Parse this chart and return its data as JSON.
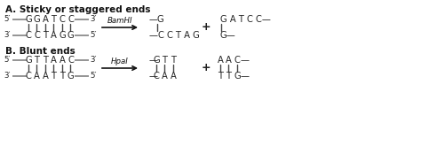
{
  "title_A": "A. Sticky or staggered ends",
  "title_B": "B. Blunt ends",
  "enzyme_A": "BamHI",
  "enzyme_B": "HpaI",
  "bg_color": "#ffffff",
  "text_color": "#222222",
  "line_color": "#777777",
  "fig_width": 4.74,
  "fig_height": 1.65,
  "dpi": 100
}
